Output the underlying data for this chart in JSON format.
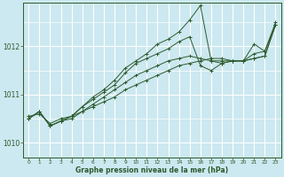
{
  "title": "Graphe pression niveau de la mer (hPa)",
  "bg_color": "#cce8f0",
  "grid_color": "#ffffff",
  "line_color": "#2d5a2d",
  "xlim": [
    -0.5,
    23.5
  ],
  "ylim": [
    1009.7,
    1012.9
  ],
  "yticks": [
    1010,
    1011,
    1012
  ],
  "xticks": [
    0,
    1,
    2,
    3,
    4,
    5,
    6,
    7,
    8,
    9,
    10,
    11,
    12,
    13,
    14,
    15,
    16,
    17,
    18,
    19,
    20,
    21,
    22,
    23
  ],
  "series": [
    {
      "x": [
        0,
        1,
        2,
        3,
        4,
        5,
        6,
        7,
        8,
        9,
        10,
        11,
        12,
        13,
        14,
        15,
        16,
        17,
        18,
        19,
        20,
        21,
        22,
        23
      ],
      "y": [
        1010.55,
        1010.6,
        1010.4,
        1010.5,
        1010.55,
        1010.65,
        1010.75,
        1010.85,
        1010.95,
        1011.1,
        1011.2,
        1011.3,
        1011.4,
        1011.5,
        1011.6,
        1011.65,
        1011.7,
        1011.75,
        1011.75,
        1011.7,
        1011.7,
        1011.75,
        1011.8,
        1012.45
      ]
    },
    {
      "x": [
        0,
        1,
        2,
        3,
        4,
        5,
        6,
        7,
        8,
        9,
        10,
        11,
        12,
        13,
        14,
        15,
        16,
        17,
        18,
        19,
        20,
        21,
        22,
        23
      ],
      "y": [
        1010.5,
        1010.65,
        1010.35,
        1010.45,
        1010.5,
        1010.65,
        1010.8,
        1010.95,
        1011.1,
        1011.25,
        1011.4,
        1011.5,
        1011.6,
        1011.7,
        1011.75,
        1011.8,
        1011.75,
        1011.7,
        1011.7,
        1011.7,
        1011.7,
        1011.75,
        1011.8,
        1012.45
      ]
    },
    {
      "x": [
        0,
        1,
        2,
        3,
        4,
        5,
        6,
        7,
        8,
        9,
        10,
        11,
        12,
        13,
        14,
        15,
        16,
        17,
        18,
        19,
        20,
        21,
        22,
        23
      ],
      "y": [
        1010.5,
        1010.65,
        1010.35,
        1010.45,
        1010.55,
        1010.75,
        1010.95,
        1011.1,
        1011.3,
        1011.55,
        1011.7,
        1011.85,
        1012.05,
        1012.15,
        1012.3,
        1012.55,
        1012.85,
        1011.7,
        1011.65,
        1011.7,
        1011.7,
        1012.05,
        1011.9,
        1012.5
      ]
    },
    {
      "x": [
        0,
        1,
        2,
        3,
        4,
        5,
        6,
        7,
        8,
        9,
        10,
        11,
        12,
        13,
        14,
        15,
        16,
        17,
        18,
        19,
        20,
        21,
        22,
        23
      ],
      "y": [
        1010.5,
        1010.65,
        1010.35,
        1010.45,
        1010.55,
        1010.75,
        1010.9,
        1011.05,
        1011.2,
        1011.45,
        1011.65,
        1011.75,
        1011.85,
        1011.95,
        1012.1,
        1012.2,
        1011.6,
        1011.5,
        1011.65,
        1011.7,
        1011.7,
        1011.85,
        1011.9,
        1012.45
      ]
    }
  ]
}
